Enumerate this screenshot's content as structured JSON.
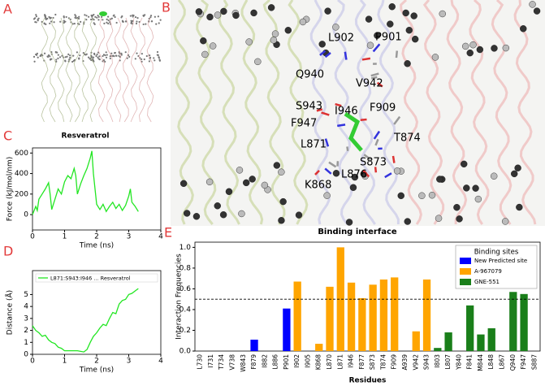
{
  "panels": {
    "A": {
      "label": "A"
    },
    "B": {
      "label": "B",
      "caption": "Binding interface",
      "residues": [
        {
          "text": "L902",
          "color": "#e8711c"
        },
        {
          "text": "P901",
          "color": "#2d2dd8"
        },
        {
          "text": "Q940",
          "color": "#2e8b2e"
        },
        {
          "text": "V942",
          "color": "#e8711c"
        },
        {
          "text": "S943",
          "color": "#e8711c"
        },
        {
          "text": "I946",
          "color": "#e8711c"
        },
        {
          "text": "F909",
          "color": "#e8711c"
        },
        {
          "text": "F947",
          "color": "#2e8b2e"
        },
        {
          "text": "T874",
          "color": "#e8711c"
        },
        {
          "text": "L871",
          "color": "#e8711c"
        },
        {
          "text": "S873",
          "color": "#e8711c"
        },
        {
          "text": "L876",
          "color": "#e8711c"
        },
        {
          "text": "K868",
          "color": "#e8711c"
        }
      ]
    }
  },
  "chart_data": [
    {
      "type": "line",
      "panel_label": "C",
      "title": "Resveratrol",
      "x_label": "Time (ns)",
      "y_label": "Force (kJ/mol/nm)",
      "color": "#22e622",
      "x": [
        0,
        0.1,
        0.15,
        0.2,
        0.3,
        0.4,
        0.5,
        0.55,
        0.6,
        0.7,
        0.8,
        0.9,
        1.0,
        1.1,
        1.2,
        1.3,
        1.35,
        1.4,
        1.5,
        1.6,
        1.7,
        1.8,
        1.85,
        1.9,
        2.0,
        2.1,
        2.2,
        2.3,
        2.4,
        2.5,
        2.6,
        2.7,
        2.8,
        2.9,
        3.0,
        3.05,
        3.1,
        3.2,
        3.3
      ],
      "values": [
        0,
        80,
        40,
        150,
        200,
        250,
        310,
        200,
        50,
        150,
        250,
        200,
        320,
        380,
        350,
        450,
        380,
        200,
        300,
        380,
        450,
        550,
        620,
        400,
        100,
        50,
        100,
        30,
        80,
        120,
        60,
        100,
        40,
        90,
        180,
        250,
        120,
        80,
        30
      ],
      "xlim": [
        0,
        4
      ],
      "xticks": [
        0,
        1,
        2,
        3,
        4
      ],
      "ylim": [
        -150,
        650
      ],
      "yticks": [
        0,
        200,
        400,
        600
      ]
    },
    {
      "type": "line",
      "panel_label": "D",
      "x_label": "Time (ns)",
      "y_label": "Distance (Å)",
      "legend": "upper left",
      "x": [
        0,
        0.1,
        0.2,
        0.3,
        0.4,
        0.5,
        0.6,
        0.7,
        0.8,
        0.9,
        1.0,
        1.2,
        1.4,
        1.6,
        1.7,
        1.8,
        1.9,
        2.0,
        2.1,
        2.2,
        2.3,
        2.4,
        2.5,
        2.6,
        2.7,
        2.8,
        2.9,
        3.0,
        3.1,
        3.2,
        3.3
      ],
      "series": [
        {
          "name": "L871:S943:I946 ... Resveratrol",
          "color": "#22e622",
          "values": [
            2.4,
            2.0,
            1.8,
            1.5,
            1.6,
            1.2,
            1.0,
            0.9,
            0.6,
            0.5,
            0.3,
            0.3,
            0.3,
            0.2,
            0.4,
            1.0,
            1.5,
            1.8,
            2.2,
            2.5,
            2.4,
            3.0,
            3.5,
            3.4,
            4.2,
            4.5,
            4.6,
            5.0,
            5.1,
            5.3,
            5.5
          ]
        }
      ],
      "xlim": [
        0,
        4
      ],
      "xticks": [
        0,
        1,
        2,
        3,
        4
      ],
      "ylim": [
        0,
        7
      ],
      "yticks": [
        0,
        1,
        2,
        3,
        4,
        5
      ]
    },
    {
      "type": "bar",
      "panel_label": "E",
      "x_label": "Residues",
      "y_label": "Interaction Frequencies",
      "legend_title": "Binding sites",
      "legend": "upper right",
      "categories": [
        "L730",
        "I731",
        "T734",
        "V738",
        "W843",
        "F879",
        "I882",
        "L886",
        "P901",
        "I902",
        "I905",
        "K868",
        "L870",
        "L871",
        "I946",
        "F877",
        "S873",
        "T874",
        "F909",
        "A939",
        "V942",
        "S943",
        "I803",
        "L807",
        "Y840",
        "F841",
        "M844",
        "L848",
        "L867",
        "Q940",
        "F947",
        "S887"
      ],
      "series": [
        {
          "name": "New Predicted site",
          "color": "#0000ff",
          "values": [
            0,
            0,
            0,
            0,
            0,
            0.11,
            0,
            0,
            0.41,
            null,
            null,
            null,
            null,
            null,
            null,
            null,
            null,
            null,
            null,
            null,
            null,
            null,
            null,
            null,
            null,
            null,
            null,
            null,
            null,
            null,
            null,
            null
          ]
        },
        {
          "name": "A-967079",
          "color": "#ffa500",
          "values": [
            null,
            null,
            null,
            null,
            null,
            null,
            null,
            null,
            null,
            0.67,
            0,
            0.07,
            0.62,
            1.0,
            0.66,
            0.51,
            0.64,
            0.69,
            0.71,
            0,
            0.19,
            0.69,
            null,
            null,
            null,
            null,
            null,
            null,
            null,
            null,
            null,
            null
          ]
        },
        {
          "name": "GNE-551",
          "color": "#1a7f1a",
          "values": [
            null,
            null,
            null,
            null,
            null,
            null,
            null,
            null,
            null,
            null,
            null,
            null,
            null,
            null,
            null,
            null,
            null,
            null,
            null,
            null,
            null,
            null,
            0.03,
            0.18,
            0,
            0.44,
            0.16,
            0.22,
            0,
            0.57,
            0.55,
            0
          ]
        }
      ],
      "reference_line": 0.5,
      "ylim": [
        0,
        1.05
      ],
      "yticks": [
        {
          "value": 0,
          "label": "0.0"
        },
        {
          "value": 0.2,
          "label": "0.2"
        },
        {
          "value": 0.4,
          "label": "0.4"
        },
        {
          "value": 0.6,
          "label": "0.6"
        },
        {
          "value": 0.8,
          "label": "0.8"
        },
        {
          "value": 1,
          "label": "1.0"
        }
      ]
    }
  ]
}
